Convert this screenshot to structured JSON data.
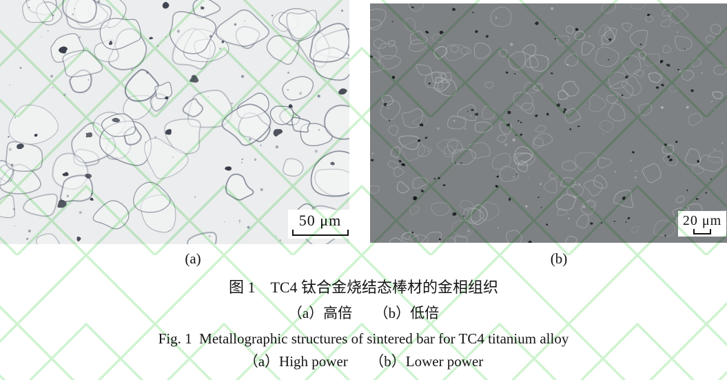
{
  "figure": {
    "caption_cn_title": "图 1　TC4 钛合金烧结态棒材的金相组织",
    "caption_cn_sub": "（a）高倍　　（b）低倍",
    "caption_en_title": "Fig. 1  Metallographic structures of sintered bar for TC4 titanium alloy",
    "caption_en_sub": "（a）High power　　（b）Lower power",
    "panels": [
      {
        "label": "(a)",
        "scale_bar_label": "50 μm"
      },
      {
        "label": "(b)",
        "scale_bar_label": "20 μm"
      }
    ]
  },
  "colors": {
    "watermark_green": "#c7f1c8",
    "panel_a_background": "#ebedee",
    "panel_a_cell_fill": "#f4f5f6",
    "panel_a_boundary": "#6b7282",
    "panel_a_pore": "#373c48",
    "panel_a_speckle": "#596070",
    "panel_b_background": "#7e8184",
    "panel_b_boundary": "#b2b5b7",
    "panel_b_pore": "#17191c",
    "panel_b_speckle": "#c6c9cb",
    "text": "#141414"
  }
}
